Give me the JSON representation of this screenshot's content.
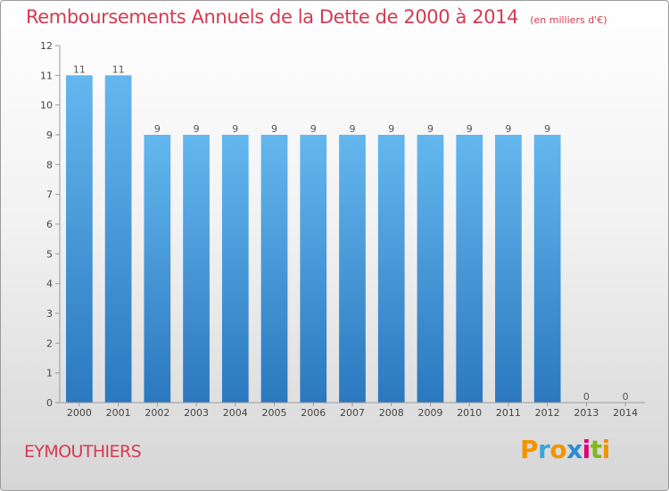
{
  "title": "Remboursements Annuels de la Dette de 2000 à 2014",
  "unit_label": "(en milliers d'€)",
  "commune": "EYMOUTHIERS",
  "logo": {
    "text": "Proxiti",
    "letters": [
      "P",
      "r",
      "o",
      "x",
      "i",
      "t",
      "i"
    ],
    "colors": [
      "#f29400",
      "#3aa6dd",
      "#f29400",
      "#2b8cd1",
      "#e2007a",
      "#83b81a",
      "#f29400"
    ]
  },
  "colors": {
    "title": "#d33b50",
    "bar_top": "#64b7ee",
    "bar_bottom": "#2b78bf"
  },
  "chart_data": {
    "type": "bar",
    "title": "Remboursements Annuels de la Dette de 2000 à 2014",
    "categories": [
      "2000",
      "2001",
      "2002",
      "2003",
      "2004",
      "2005",
      "2006",
      "2007",
      "2008",
      "2009",
      "2010",
      "2011",
      "2012",
      "2013",
      "2014"
    ],
    "values": [
      11,
      11,
      9,
      9,
      9,
      9,
      9,
      9,
      9,
      9,
      9,
      9,
      9,
      0,
      0
    ],
    "data_labels": [
      "11",
      "11",
      "9",
      "9",
      "9",
      "9",
      "9",
      "9",
      "9",
      "9",
      "9",
      "9",
      "9",
      "0",
      "0"
    ],
    "yticks": [
      0,
      1,
      2,
      3,
      4,
      5,
      6,
      7,
      8,
      9,
      10,
      11,
      12
    ],
    "ylim": [
      0,
      12
    ],
    "xlabel": "",
    "ylabel": "",
    "grid": false,
    "legend": "none"
  }
}
